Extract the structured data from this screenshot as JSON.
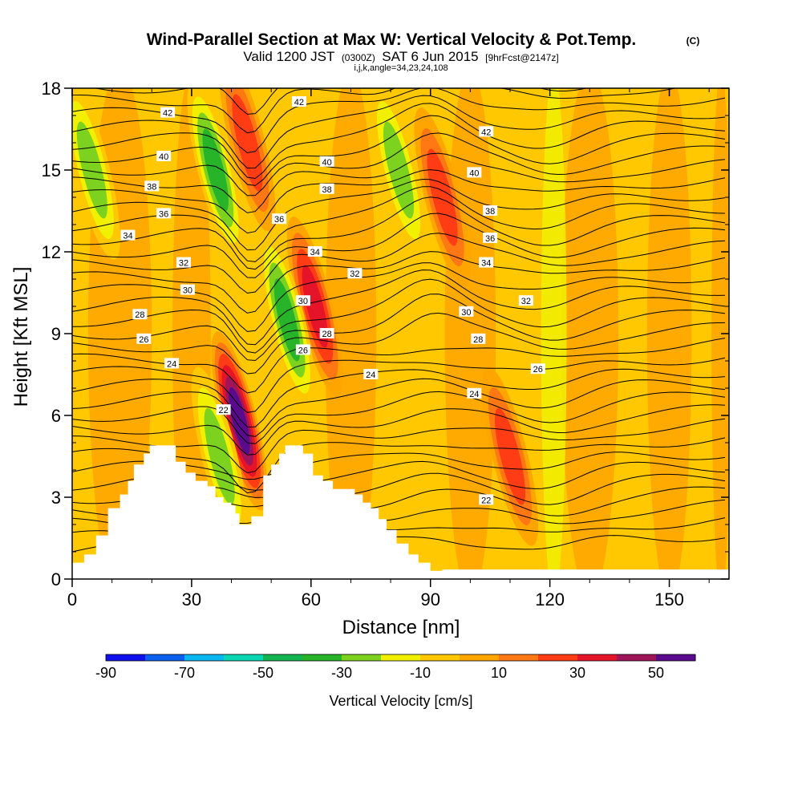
{
  "chart_data": {
    "type": "contour",
    "title": "Wind-Parallel Section at Max W: Vertical Velocity & Pot.Temp.",
    "title_unit": "(C)",
    "subtitle_prefix": "Valid 1200 JST",
    "subtitle_utc": "(0300Z)",
    "subtitle_date": "SAT 6 Jun 2015",
    "subtitle_fcst": "[9hrFcst@2147z]",
    "subtitle_indices": "i,j,k,angle=34,23,24,108",
    "xlabel": "Distance [nm]",
    "ylabel": "Height [Kft MSL]",
    "xlim": [
      0,
      165
    ],
    "ylim": [
      0,
      18
    ],
    "x_ticks": [
      "0",
      "30",
      "60",
      "90",
      "120",
      "150"
    ],
    "y_ticks": [
      "0",
      "3",
      "6",
      "9",
      "12",
      "15",
      "18"
    ],
    "colorbar": {
      "label": "Vertical Velocity [cm/s]",
      "bounds": [
        -90,
        60
      ],
      "step": 10,
      "colors": [
        "#1010ee",
        "#0a5ef0",
        "#0ab6f0",
        "#0ad8b4",
        "#14b450",
        "#28b428",
        "#7cd21e",
        "#f0f000",
        "#ffc800",
        "#ffa500",
        "#ff7814",
        "#ff3c14",
        "#e61428",
        "#a0145a",
        "#5a0a8c"
      ],
      "tick_labels": [
        "-90",
        "-70",
        "-50",
        "-30",
        "-10",
        "10",
        "30",
        "50"
      ]
    },
    "vertical_velocity_features": [
      {
        "kind": "updraft",
        "x": 42,
        "y": 5.8,
        "peak_cm_s": 55
      },
      {
        "kind": "updraft",
        "x": 44,
        "y": 16,
        "peak_cm_s": 30
      },
      {
        "kind": "updraft",
        "x": 61,
        "y": 10,
        "peak_cm_s": 35
      },
      {
        "kind": "updraft",
        "x": 93,
        "y": 14,
        "peak_cm_s": 30
      },
      {
        "kind": "updraft",
        "x": 110,
        "y": 4.5,
        "peak_cm_s": 25
      },
      {
        "kind": "downdraft",
        "x": 36,
        "y": 15,
        "peak_cm_s": -35
      },
      {
        "kind": "downdraft",
        "x": 54,
        "y": 9.5,
        "peak_cm_s": -40
      },
      {
        "kind": "downdraft",
        "x": 82,
        "y": 15,
        "peak_cm_s": -25
      },
      {
        "kind": "downdraft",
        "x": 37,
        "y": 4.5,
        "peak_cm_s": -30
      },
      {
        "kind": "downdraft",
        "x": 5,
        "y": 15,
        "peak_cm_s": -25
      }
    ],
    "theta_labels": [
      {
        "text": "42",
        "x": 24,
        "y": 17.1
      },
      {
        "text": "42",
        "x": 57,
        "y": 17.5
      },
      {
        "text": "42",
        "x": 104,
        "y": 16.4
      },
      {
        "text": "40",
        "x": 23,
        "y": 15.5
      },
      {
        "text": "40",
        "x": 64,
        "y": 15.3
      },
      {
        "text": "40",
        "x": 101,
        "y": 14.9
      },
      {
        "text": "38",
        "x": 20,
        "y": 14.4
      },
      {
        "text": "38",
        "x": 64,
        "y": 14.3
      },
      {
        "text": "38",
        "x": 105,
        "y": 13.5
      },
      {
        "text": "36",
        "x": 23,
        "y": 13.4
      },
      {
        "text": "36",
        "x": 52,
        "y": 13.2
      },
      {
        "text": "36",
        "x": 105,
        "y": 12.5
      },
      {
        "text": "34",
        "x": 14,
        "y": 12.6
      },
      {
        "text": "34",
        "x": 61,
        "y": 12.0
      },
      {
        "text": "34",
        "x": 104,
        "y": 11.6
      },
      {
        "text": "32",
        "x": 28,
        "y": 11.6
      },
      {
        "text": "32",
        "x": 71,
        "y": 11.2
      },
      {
        "text": "32",
        "x": 114,
        "y": 10.2
      },
      {
        "text": "30",
        "x": 29,
        "y": 10.6
      },
      {
        "text": "30",
        "x": 58,
        "y": 10.2
      },
      {
        "text": "30",
        "x": 99,
        "y": 9.8
      },
      {
        "text": "28",
        "x": 17,
        "y": 9.7
      },
      {
        "text": "28",
        "x": 64,
        "y": 9.0
      },
      {
        "text": "28",
        "x": 102,
        "y": 8.8
      },
      {
        "text": "26",
        "x": 18,
        "y": 8.8
      },
      {
        "text": "26",
        "x": 58,
        "y": 8.4
      },
      {
        "text": "26",
        "x": 117,
        "y": 7.7
      },
      {
        "text": "24",
        "x": 25,
        "y": 7.9
      },
      {
        "text": "24",
        "x": 75,
        "y": 7.5
      },
      {
        "text": "24",
        "x": 101,
        "y": 6.8
      },
      {
        "text": "22",
        "x": 38,
        "y": 6.2
      },
      {
        "text": "22",
        "x": 104,
        "y": 2.9
      }
    ],
    "terrain_steps": [
      [
        0,
        0.6
      ],
      [
        3,
        0.9
      ],
      [
        6,
        1.6
      ],
      [
        9,
        2.6
      ],
      [
        12,
        3.1
      ],
      [
        14,
        3.6
      ],
      [
        15.5,
        4.2
      ],
      [
        18,
        4.6
      ],
      [
        19.5,
        4.9
      ],
      [
        26,
        4.3
      ],
      [
        28.5,
        3.9
      ],
      [
        31,
        3.6
      ],
      [
        34,
        3.4
      ],
      [
        36,
        3.0
      ],
      [
        38,
        2.8
      ],
      [
        40,
        2.7
      ],
      [
        41,
        2.4
      ],
      [
        42,
        2.0
      ],
      [
        45,
        2.3
      ],
      [
        48,
        3.8
      ],
      [
        50,
        4.2
      ],
      [
        52,
        4.6
      ],
      [
        53.5,
        4.9
      ],
      [
        58,
        4.6
      ],
      [
        60.5,
        3.8
      ],
      [
        63,
        3.6
      ],
      [
        65.5,
        3.3
      ],
      [
        71,
        3.1
      ],
      [
        73,
        2.8
      ],
      [
        75,
        2.6
      ],
      [
        77,
        2.2
      ],
      [
        79,
        1.8
      ],
      [
        81.5,
        1.3
      ],
      [
        84.5,
        0.9
      ],
      [
        87,
        0.6
      ],
      [
        90,
        0.3
      ],
      [
        93,
        0.35
      ],
      [
        165,
        0.35
      ]
    ]
  }
}
